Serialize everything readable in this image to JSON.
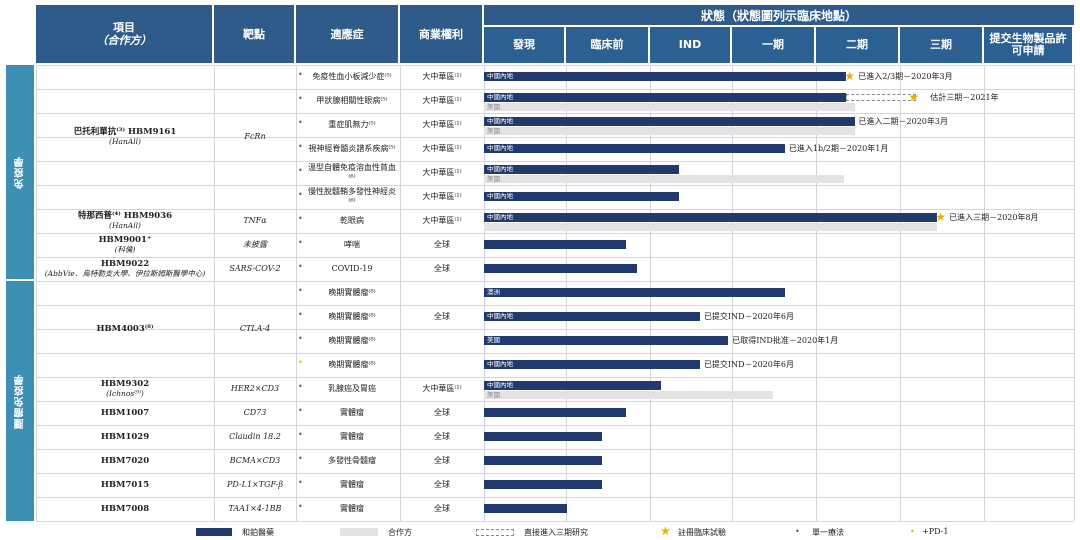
{
  "headers": {
    "candidate": "項目",
    "partner": "（合作方）",
    "target": "靶點",
    "indication": "適應症",
    "rights": "商業權利",
    "status": "狀態（狀態圖列示臨床地點）",
    "phases": [
      "發現",
      "臨床前",
      "IND",
      "一期",
      "二期",
      "三期",
      "提交生物製品許可申請"
    ]
  },
  "categories": {
    "immunology": "免疫學",
    "oncology": "腫瘤免疫學"
  },
  "candidates": [
    {
      "name": "巴托利單抗⁽³⁾ HBM9161",
      "partner": "(HanAll)",
      "target": "FcRn"
    },
    {
      "name": "特那西普⁽⁴⁾ HBM9036",
      "partner": "(HanAll)",
      "target": "TNFα"
    },
    {
      "name": "HBM9001⁺",
      "partner": "(科倫)",
      "target": "未披露"
    },
    {
      "name": "HBM9022",
      "partner": "(AbbVie、烏特勒支大學、伊拉斯姆斯醫學中心)",
      "target": "SARS-COV-2"
    },
    {
      "name": "HBM4003⁽⁸⁾",
      "partner": "",
      "target": "CTLA-4"
    },
    {
      "name": "HBM9302",
      "partner": "(Ichnos⁽⁹⁾)",
      "target": "HER2×CD3"
    },
    {
      "name": "HBM1007",
      "partner": "",
      "target": "CD73"
    },
    {
      "name": "HBM1029",
      "partner": "",
      "target": "Claudin 18.2"
    },
    {
      "name": "HBM7020",
      "partner": "",
      "target": "BCMA×CD3"
    },
    {
      "name": "HBM7015",
      "partner": "",
      "target": "PD-L1×TGF-β"
    },
    {
      "name": "HBM7008",
      "partner": "",
      "target": "TAA1×4-1BB"
    }
  ],
  "rows": [
    {
      "indication": "免疫性血小板減少症⁽⁵⁾",
      "rights": "大中華區⁽¹⁾",
      "bar_label": "中國內地",
      "bar_end": 0.614,
      "partner_label": "",
      "partner_end": 0,
      "note": "已進入2/3期－2020年3月",
      "star": true,
      "dash": false
    },
    {
      "indication": "甲狀腺相關性眼病⁽⁵⁾",
      "rights": "大中華區⁽¹⁾",
      "bar_label": "中國內地",
      "bar_end": 0.614,
      "partner_label": "美國",
      "partner_end": 0.628,
      "note": "估計三期－2021年",
      "star": true,
      "dash": true
    },
    {
      "indication": "重症肌無力⁽⁵⁾",
      "rights": "大中華區⁽¹⁾",
      "bar_label": "中國內地",
      "bar_end": 0.628,
      "partner_label": "美國",
      "partner_end": 0.628,
      "note": "已進入二期－2020年3月",
      "star": false,
      "dash": false
    },
    {
      "indication": "視神經脊髓炎譜系疾病⁽⁵⁾",
      "rights": "大中華區⁽¹⁾",
      "bar_label": "中國內地",
      "bar_end": 0.51,
      "partner_label": "",
      "partner_end": 0,
      "note": "已進入1b/2期－2020年1月",
      "star": false,
      "dash": false
    },
    {
      "indication": "溫型自體免疫溶血性貧血⁽⁶⁾",
      "rights": "大中華區⁽¹⁾",
      "bar_label": "中國內地",
      "bar_end": 0.33,
      "partner_label": "美國",
      "partner_end": 0.61,
      "note": "",
      "star": false,
      "dash": false
    },
    {
      "indication": "慢性脫髓鞘多發性神經炎⁽⁶⁾",
      "rights": "大中華區⁽¹⁾",
      "bar_label": "中國內地",
      "bar_end": 0.33,
      "partner_label": "",
      "partner_end": 0,
      "note": "",
      "star": false,
      "dash": false
    },
    {
      "indication": "乾眼病",
      "rights": "大中華區⁽¹⁾",
      "bar_label": "中國內地",
      "bar_end": 0.768,
      "partner_label": "",
      "partner_end": 0.768,
      "note": "已進入三期－2020年8月",
      "star": true,
      "dash": false
    },
    {
      "indication": "哮喘",
      "rights": "全球",
      "bar_label": "",
      "bar_end": 0.24,
      "partner_label": "",
      "partner_end": 0,
      "note": "",
      "star": false,
      "dash": false
    },
    {
      "indication": "COVID-19",
      "rights": "全球",
      "bar_label": "",
      "bar_end": 0.26,
      "partner_label": "",
      "partner_end": 0,
      "note": "",
      "star": false,
      "dash": false
    },
    {
      "indication": "晚期實體瘤⁽⁸⁾",
      "rights": "",
      "bar_label": "澳洲",
      "bar_end": 0.51,
      "partner_label": "",
      "partner_end": 0,
      "note": "",
      "star": false,
      "dash": false
    },
    {
      "indication": "晚期實體瘤⁽⁸⁾",
      "rights": "全球",
      "bar_label": "中國內地",
      "bar_end": 0.366,
      "partner_label": "",
      "partner_end": 0,
      "note": "已提交IND－2020年6月",
      "star": false,
      "dash": false
    },
    {
      "indication": "晚期實體瘤⁽⁸⁾",
      "rights": "",
      "bar_label": "美國",
      "bar_end": 0.414,
      "partner_label": "",
      "partner_end": 0,
      "note": "已取得IND批准－2020年1月",
      "star": false,
      "dash": false
    },
    {
      "indication": "晚期實體瘤⁽⁸⁾",
      "rights": "",
      "bar_label": "中國內地",
      "bar_end": 0.366,
      "partner_label": "",
      "partner_end": 0,
      "note": "已提交IND－2020年6月",
      "star": false,
      "dash": false
    },
    {
      "indication": "乳腺癌及胃癌",
      "rights": "大中華區⁽¹⁾",
      "bar_label": "中國內地",
      "bar_end": 0.3,
      "partner_label": "美國",
      "partner_end": 0.49,
      "note": "",
      "star": false,
      "dash": false
    },
    {
      "indication": "實體瘤",
      "rights": "全球",
      "bar_label": "",
      "bar_end": 0.24,
      "partner_label": "",
      "partner_end": 0,
      "note": "",
      "star": false,
      "dash": false
    },
    {
      "indication": "實體瘤",
      "rights": "全球",
      "bar_label": "",
      "bar_end": 0.2,
      "partner_label": "",
      "partner_end": 0,
      "note": "",
      "star": false,
      "dash": false
    },
    {
      "indication": "多發性骨髓瘤",
      "rights": "全球",
      "bar_label": "",
      "bar_end": 0.2,
      "partner_label": "",
      "partner_end": 0,
      "note": "",
      "star": false,
      "dash": false
    },
    {
      "indication": "實體瘤",
      "rights": "全球",
      "bar_label": "",
      "bar_end": 0.2,
      "partner_label": "",
      "partner_end": 0,
      "note": "",
      "star": false,
      "dash": false
    },
    {
      "indication": "實體瘤",
      "rights": "全球",
      "bar_label": "",
      "bar_end": 0.14,
      "partner_label": "",
      "partner_end": 0,
      "note": "",
      "star": false,
      "dash": false
    }
  ],
  "legend": {
    "harbour": "和鉑醫藥",
    "partner": "合作方",
    "direct_p3": "直接進入三期研究",
    "registrational": "註冊臨床試驗",
    "mono": "單一療法",
    "pd1": "+PD-1"
  },
  "colors": {
    "header": "#2e5b8a",
    "bar": "#213a6e",
    "partner_bar": "#e3e3e3",
    "category": "#3d8fb3",
    "star": "#e2b300"
  }
}
